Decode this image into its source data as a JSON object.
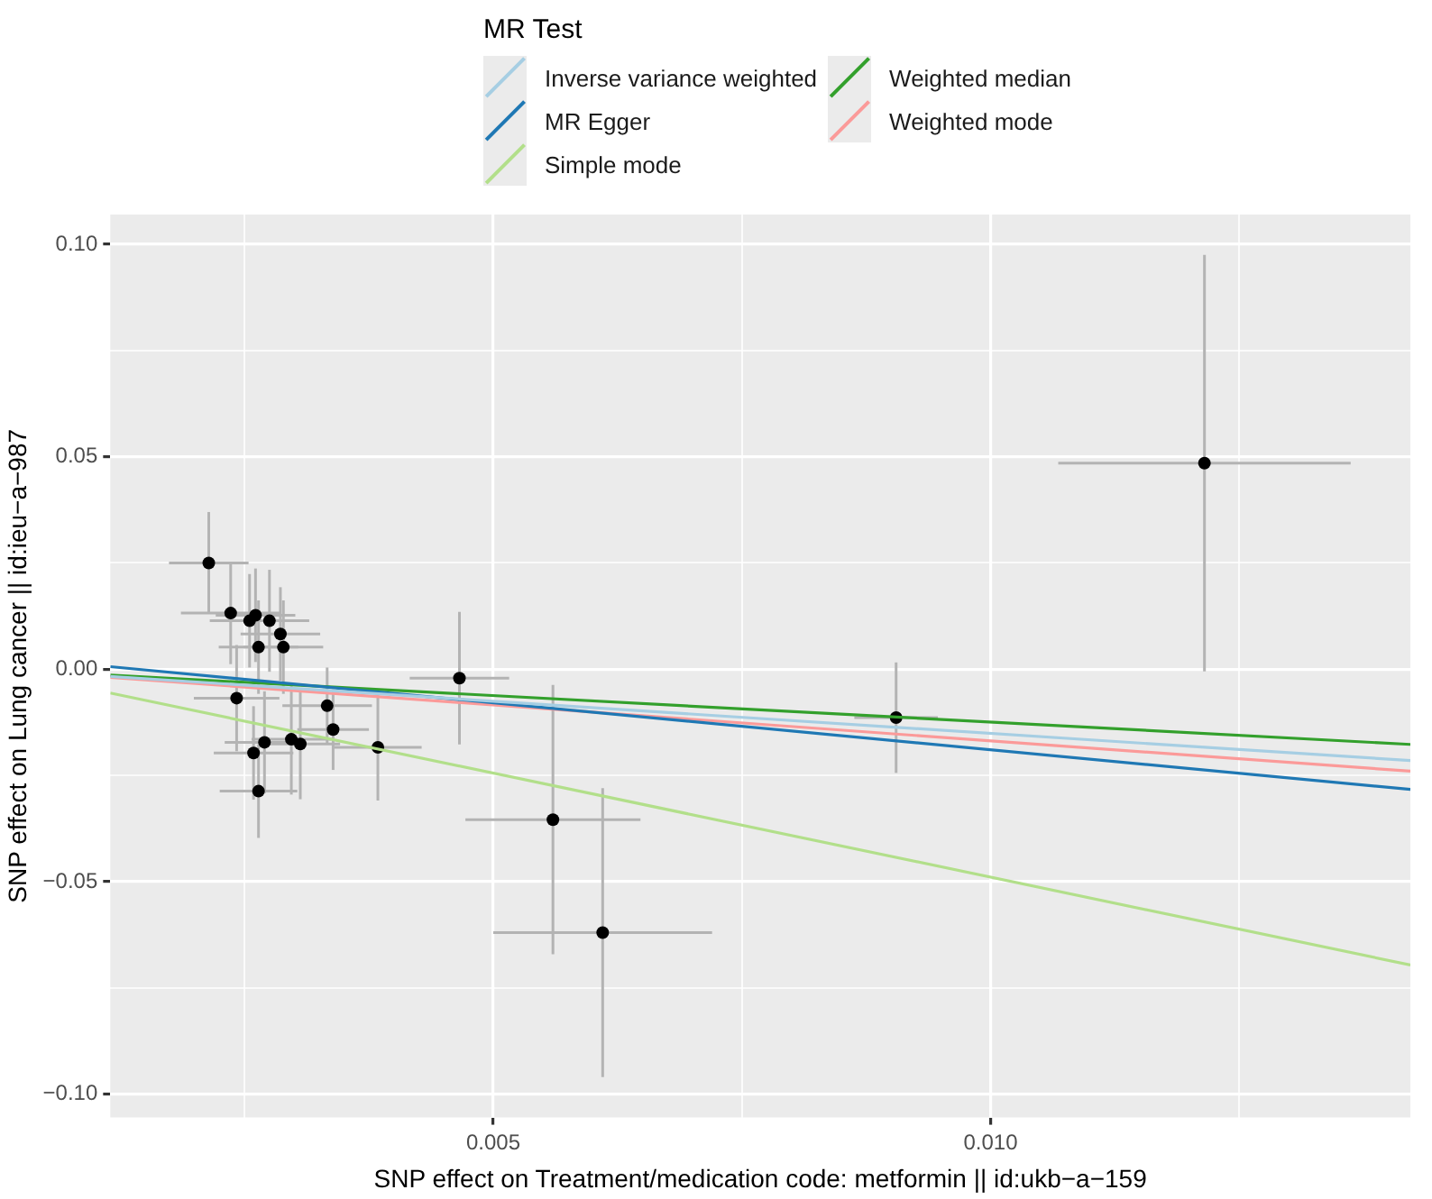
{
  "chart_data": {
    "type": "scatter",
    "xlabel": "SNP effect on Treatment/medication code: metformin || id:ukb−a−159",
    "ylabel": "SNP effect on Lung cancer || id:ieu−a−987",
    "legend_title": "MR Test",
    "legend": "top",
    "grid": true,
    "marker": "circle",
    "xlim": [
      0.00115,
      0.01422
    ],
    "ylim": [
      -0.1055,
      0.107
    ],
    "xticks": [
      {
        "value": 0.0025,
        "label": null
      },
      0.005,
      {
        "value": 0.0075,
        "label": null
      },
      {
        "value": 0.01,
        "label": "0.010"
      },
      {
        "value": 0.0125,
        "label": null
      }
    ],
    "yticks": [
      {
        "value": -0.1,
        "label": "−0.10"
      },
      {
        "value": -0.075,
        "label": null
      },
      {
        "value": -0.05,
        "label": "−0.05"
      },
      {
        "value": -0.025,
        "label": null
      },
      {
        "value": 0,
        "label": "0.00"
      },
      {
        "value": 0.025,
        "label": null
      },
      {
        "value": 0.05,
        "label": "0.05"
      },
      {
        "value": 0.075,
        "label": null
      },
      {
        "value": 0.1,
        "label": "0.10"
      }
    ],
    "series": [
      {
        "type": "scatter",
        "color": "#000000",
        "x": [
          0.00214,
          0.00236,
          0.00255,
          0.00261,
          0.00275,
          0.00286,
          0.00264,
          0.00289,
          0.00242,
          0.00333,
          0.00339,
          0.00297,
          0.00306,
          0.0027,
          0.00259,
          0.00264,
          0.00384,
          0.00466,
          0.0056,
          0.0061,
          0.00905,
          0.01215
        ],
        "values": [
          0.025,
          0.0132,
          0.0114,
          0.0127,
          0.0114,
          0.0083,
          0.0052,
          0.0052,
          -0.0068,
          -0.0086,
          -0.0142,
          -0.0165,
          -0.0176,
          -0.0172,
          -0.0197,
          -0.0287,
          -0.0184,
          -0.0021,
          -0.0354,
          -0.062,
          -0.0114,
          0.0485
        ],
        "errors": [
          0.012,
          0.012,
          0.011,
          0.011,
          0.012,
          0.011,
          0.011,
          0.011,
          0.0125,
          0.009,
          0.0095,
          0.013,
          0.013,
          0.012,
          0.011,
          0.011,
          0.0125,
          0.0156,
          0.0317,
          0.034,
          0.013,
          0.049
        ],
        "xerrors": [
          0.0004,
          0.0005,
          0.0004,
          0.0004,
          0.0004,
          0.0004,
          0.0004,
          0.0004,
          0.00043,
          0.00045,
          0.00036,
          0.0004,
          0.0004,
          0.0004,
          0.0004,
          0.00039,
          0.00044,
          0.0005,
          0.00088,
          0.0011,
          0.00042,
          0.00147
        ]
      },
      {
        "type": "line",
        "name": "Inverse variance weighted",
        "color": "#a6cee3",
        "marker": "none",
        "x": [
          0.00115,
          0.01422
        ],
        "values": [
          -0.0017,
          -0.0215
        ]
      },
      {
        "type": "line",
        "name": "MR Egger",
        "color": "#1f78b4",
        "marker": "none",
        "x": [
          0.00115,
          0.01422
        ],
        "values": [
          0.0006,
          -0.0283
        ]
      },
      {
        "type": "line",
        "name": "Simple mode",
        "color": "#b2df8a",
        "marker": "none",
        "x": [
          0.00115,
          0.01422
        ],
        "values": [
          -0.0056,
          -0.0696
        ]
      },
      {
        "type": "line",
        "name": "Weighted median",
        "color": "#33a02c",
        "marker": "none",
        "x": [
          0.00115,
          0.01422
        ],
        "values": [
          -0.0014,
          -0.0177
        ]
      },
      {
        "type": "line",
        "name": "Weighted mode",
        "color": "#fb9a99",
        "marker": "none",
        "x": [
          0.00115,
          0.01422
        ],
        "values": [
          -0.0019,
          -0.024
        ]
      }
    ]
  }
}
